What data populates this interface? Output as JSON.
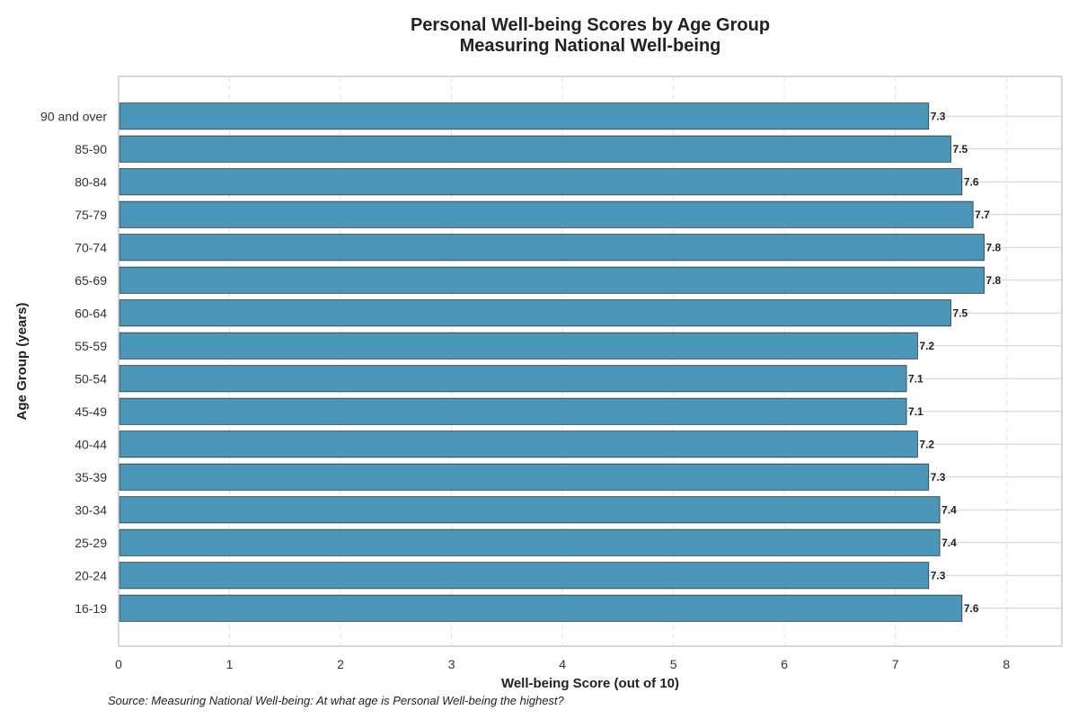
{
  "chart_data": {
    "type": "bar",
    "orientation": "horizontal",
    "title": "Personal Well-being Scores by Age Group",
    "subtitle": "Measuring National Well-being",
    "xlabel": "Well-being Score (out of 10)",
    "ylabel": "Age Group (years)",
    "xlim": [
      0,
      8.5
    ],
    "xticks": [
      0,
      1,
      2,
      3,
      4,
      5,
      6,
      7,
      8
    ],
    "grid": "x-dashed",
    "bar_color": "#4a97b9",
    "bar_edge_color": "#333333",
    "categories": [
      "16-19",
      "20-24",
      "25-29",
      "30-34",
      "35-39",
      "40-44",
      "45-49",
      "50-54",
      "55-59",
      "60-64",
      "65-69",
      "70-74",
      "75-79",
      "80-84",
      "85-90",
      "90 and over"
    ],
    "values": [
      7.6,
      7.3,
      7.4,
      7.4,
      7.3,
      7.2,
      7.1,
      7.1,
      7.2,
      7.5,
      7.8,
      7.8,
      7.7,
      7.6,
      7.5,
      7.3
    ],
    "value_labels": [
      "7.6",
      "7.3",
      "7.4",
      "7.4",
      "7.3",
      "7.2",
      "7.1",
      "7.1",
      "7.2",
      "7.5",
      "7.8",
      "7.8",
      "7.7",
      "7.6",
      "7.5",
      "7.3"
    ],
    "source": "Source: Measuring National Well-being: At what age is Personal Well-being the highest?"
  }
}
